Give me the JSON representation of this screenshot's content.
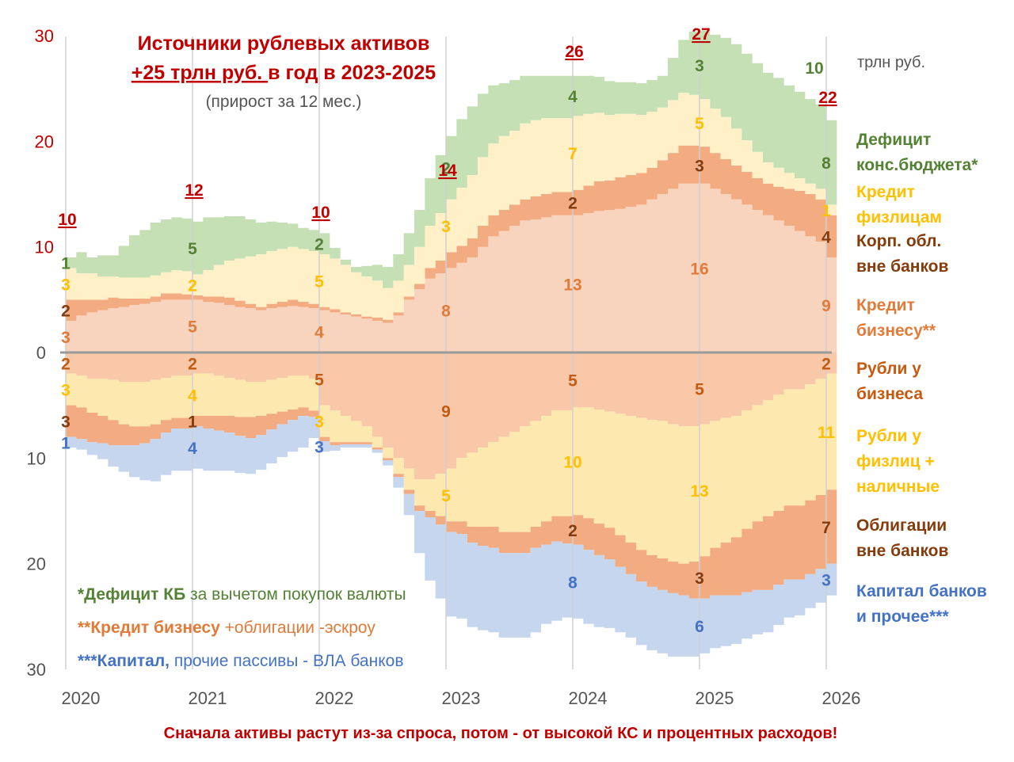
{
  "chart_data": {
    "type": "area",
    "title": "Источники рублевых активов",
    "subtitle_underlined": "+25 трлн руб. ",
    "subtitle_rest": "в год в 2023-2025",
    "subtitle2": "(прирост за 12 мес.)",
    "unit": "трлн руб.",
    "footer": "Сначала активы растут из-за спроса, потом - от высокой КС и процентных расходов!",
    "xlabel": "",
    "ylabel": "",
    "x_ticks": [
      "2020",
      "2021",
      "2022",
      "2023",
      "2024",
      "2025",
      "2026"
    ],
    "x_range": [
      2020,
      2026
    ],
    "ylim": [
      -30,
      30
    ],
    "y_ticks_top": [
      "30",
      "20",
      "10"
    ],
    "y_ticks_bottom": [
      "0",
      "10",
      "20",
      "30"
    ],
    "grid": "vertical at years",
    "legend": "right",
    "top_series": [
      {
        "name": "Кредит бизнесу**",
        "color": "#f8d3bd",
        "label_color": "#e07b39",
        "year_values": [
          3,
          5,
          4,
          8,
          13,
          16,
          9
        ],
        "values": [
          3,
          3.5,
          3.8,
          4,
          4.2,
          4.3,
          4.5,
          4.6,
          4.8,
          5,
          5,
          5,
          5,
          4.8,
          4.7,
          4.5,
          4.3,
          4.2,
          4.0,
          4.2,
          4.3,
          4.4,
          4.3,
          4.2,
          4,
          3.8,
          3.6,
          3.4,
          3.2,
          3.0,
          2.8,
          3.5,
          5,
          6,
          7,
          7.5,
          8,
          8.5,
          9,
          10,
          11,
          11.5,
          12,
          12.5,
          12.6,
          12.8,
          13,
          13,
          13,
          13.2,
          13.4,
          13.5,
          13.6,
          13.8,
          14,
          14.5,
          15,
          15.5,
          16,
          16,
          16,
          15.5,
          15,
          14.5,
          14,
          13.5,
          13,
          12.5,
          12,
          11.5,
          11,
          10.5,
          9
        ]
      },
      {
        "name": "Корп. обл. вне банков",
        "color": "#f3ab82",
        "label_color": "#843c0c",
        "year_values": [
          2,
          0,
          0,
          0,
          2,
          3,
          4
        ],
        "values": [
          2,
          1.5,
          1.2,
          1,
          1,
          0.8,
          0.6,
          0.5,
          0.5,
          0.6,
          0.6,
          0.5,
          0.4,
          0.5,
          0.6,
          0.7,
          0.6,
          0.4,
          0.3,
          0.4,
          0.5,
          0.6,
          0.5,
          0.4,
          0.3,
          0.3,
          0.2,
          0.2,
          0.2,
          0.3,
          0.3,
          0.3,
          0.3,
          0.5,
          1,
          1.2,
          1.5,
          1.6,
          1.8,
          2,
          2,
          2,
          2,
          2,
          2.2,
          2.2,
          2.2,
          2.2,
          2.4,
          2.6,
          2.8,
          2.8,
          3,
          3,
          3,
          3,
          3.2,
          3.4,
          3.6,
          3.6,
          3.5,
          3.4,
          3.3,
          3.2,
          3.1,
          3.0,
          3.0,
          3.2,
          3.5,
          3.8,
          4.0,
          4.0,
          4
        ]
      },
      {
        "name": "Кредит физлицам",
        "color": "#fff0c7",
        "label_color": "#ffc000",
        "year_values": [
          3,
          2,
          5,
          3,
          7,
          5,
          1
        ],
        "values": [
          3,
          2.5,
          2.5,
          2.2,
          2,
          2,
          2,
          2,
          2,
          2,
          2.2,
          2.2,
          2,
          2.5,
          3,
          3.5,
          4,
          4.5,
          5,
          5,
          5,
          5,
          5,
          5,
          5,
          4.8,
          4.5,
          4,
          3.8,
          3.5,
          3,
          3,
          3,
          3.5,
          4,
          4.5,
          5,
          5.5,
          6,
          6.5,
          6.8,
          7,
          7,
          7.2,
          7.2,
          7.2,
          7,
          7,
          7,
          6.8,
          6.5,
          6.2,
          6,
          5.8,
          5.5,
          5.3,
          5,
          5,
          5,
          4.8,
          4.5,
          4.2,
          4,
          3.5,
          3,
          2.5,
          2,
          1.8,
          1.5,
          1.2,
          1,
          1,
          1
        ]
      },
      {
        "name": "Дефицит конс.бюджета*",
        "color": "#c5e0b4",
        "label_color": "#548235",
        "year_values": [
          1,
          5,
          2,
          2,
          4,
          3,
          8
        ],
        "values": [
          1,
          2,
          1.5,
          2,
          2,
          3,
          4,
          4.5,
          5,
          5,
          5,
          5,
          5,
          5,
          4.5,
          4.2,
          4,
          3.5,
          3,
          2.8,
          2.5,
          2.2,
          2,
          2,
          2,
          1,
          0.5,
          0.5,
          1,
          1.5,
          2,
          2.5,
          3,
          3.5,
          4.5,
          5.5,
          6,
          6.5,
          6.5,
          6,
          5.5,
          5,
          4.8,
          4.5,
          4.2,
          4,
          4,
          4,
          3.8,
          3.6,
          3.4,
          3.2,
          3,
          3,
          3,
          3,
          3,
          4,
          5,
          6,
          6.5,
          7,
          7.5,
          8,
          8.2,
          8.4,
          8.5,
          8.5,
          8.3,
          8.2,
          8,
          8,
          8
        ]
      }
    ],
    "bottom_series": [
      {
        "name": "Рубли у бизнеса",
        "color": "#f8c8a8",
        "label_color": "#c55a11",
        "year_values": [
          2,
          2,
          5,
          9,
          5,
          5,
          2
        ],
        "values": [
          2,
          2.2,
          2.5,
          2.5,
          2.6,
          2.8,
          2.8,
          2.8,
          2.6,
          2.4,
          2.2,
          2.2,
          2,
          2,
          2.2,
          2.4,
          2.6,
          2.8,
          2.8,
          2.6,
          2.4,
          2.2,
          2.2,
          2.5,
          5,
          5.5,
          6,
          6.5,
          7,
          8,
          9,
          10,
          11,
          12,
          12,
          11.5,
          11,
          10,
          9.5,
          9,
          8.5,
          8,
          7.5,
          7,
          6.5,
          6,
          5.5,
          5.5,
          5.2,
          5.2,
          5.4,
          5.6,
          5.8,
          6,
          6.2,
          6.4,
          6.5,
          6.8,
          7,
          7,
          6.8,
          6.5,
          6.2,
          6,
          5.5,
          5,
          4.5,
          4,
          3.5,
          3.5,
          3,
          2.5,
          2
        ]
      },
      {
        "name": "Рубли у физлиц + наличные",
        "color": "#fde9b0",
        "label_color": "#ffc000",
        "year_values": [
          3,
          4,
          3,
          5,
          10,
          13,
          11
        ],
        "values": [
          3,
          3,
          3.2,
          3.5,
          3.8,
          4,
          4.2,
          4.2,
          4.2,
          4,
          4,
          4,
          4,
          4,
          3.8,
          3.6,
          3.5,
          3.3,
          3.2,
          3.2,
          3.2,
          3.2,
          3,
          3,
          3,
          3,
          2.5,
          2,
          1.5,
          1,
          1,
          1.5,
          2,
          2.5,
          3,
          4,
          5,
          6,
          7,
          7.5,
          8,
          9,
          9.5,
          10,
          10,
          10,
          10,
          10,
          10.2,
          10.5,
          10.8,
          11,
          11.5,
          12,
          12.5,
          12.8,
          13,
          13,
          13,
          12.8,
          12.5,
          12,
          11.8,
          11.5,
          11.2,
          11,
          11,
          11,
          11,
          11,
          11,
          11,
          11
        ]
      },
      {
        "name": "Облигации вне банков",
        "color": "#f3ab82",
        "label_color": "#843c0c",
        "year_values": [
          3,
          1,
          0,
          0,
          2,
          3,
          7
        ],
        "values": [
          3,
          3,
          2.8,
          2.6,
          2.4,
          2,
          1.8,
          1.6,
          1.4,
          1.2,
          1.0,
          1,
          1,
          1.2,
          1.4,
          1.6,
          1.8,
          2,
          1.8,
          1.5,
          1.2,
          1.0,
          0.8,
          0.6,
          0.4,
          0.3,
          0.2,
          0.2,
          0.2,
          0.2,
          0.2,
          0.3,
          0.4,
          0.5,
          0.6,
          0.8,
          1,
          1.2,
          1.5,
          1.8,
          2,
          2,
          2,
          2,
          2,
          2.2,
          2.4,
          2.6,
          2.8,
          3,
          3,
          3,
          3,
          3,
          3,
          3,
          3,
          3,
          3,
          3.5,
          4,
          4.5,
          5,
          5.5,
          6,
          6.5,
          7,
          7,
          7,
          7,
          7,
          7,
          7
        ]
      },
      {
        "name": "Капитал банков и прочее***",
        "color": "#c5d6ee",
        "label_color": "#4472c4",
        "year_values": [
          1,
          4,
          3,
          0,
          8,
          6,
          3
        ],
        "values": [
          1,
          1,
          1.2,
          1.5,
          2,
          2.5,
          3,
          3.5,
          4,
          4,
          4,
          4,
          4,
          4,
          3.8,
          3.6,
          3.5,
          3.4,
          3.3,
          3.2,
          3.1,
          3,
          3,
          2,
          1,
          0.5,
          0.3,
          0.3,
          0.3,
          0.3,
          0.5,
          1,
          2,
          4,
          6,
          7,
          8,
          8,
          8,
          8,
          8,
          8,
          8,
          8,
          8,
          7.5,
          7.5,
          7,
          7,
          7,
          6.8,
          6.5,
          6.2,
          6,
          6,
          6,
          6,
          6,
          5.8,
          5.5,
          5.2,
          5,
          4.8,
          4.6,
          4.4,
          4.2,
          4,
          3.8,
          3.6,
          3.4,
          3.2,
          3.2,
          3
        ]
      }
    ],
    "totals": [
      {
        "year": "2020",
        "value": "10"
      },
      {
        "year": "2021",
        "value": "12"
      },
      {
        "year": "2022",
        "value": "10"
      },
      {
        "year": "2023",
        "value": "14"
      },
      {
        "year": "2024",
        "value": "26"
      },
      {
        "year": "2025",
        "value": "27"
      },
      {
        "year": "2026",
        "value": "22"
      }
    ],
    "extra_label": {
      "text": "10",
      "color": "#548235",
      "note": "дефицит 2025 г."
    },
    "legend_items": [
      {
        "text": [
          "Дефицит",
          "конс.бюджета*"
        ],
        "color": "#548235"
      },
      {
        "text": [
          "Кредит",
          "физлицам"
        ],
        "color": "#ffc000"
      },
      {
        "text": [
          "Корп. обл.",
          "вне банков"
        ],
        "color": "#843c0c"
      },
      {
        "text": [
          "Кредит",
          "бизнесу**"
        ],
        "color": "#e07b39"
      },
      {
        "text": [
          "Рубли у",
          "бизнеса"
        ],
        "color": "#c55a11"
      },
      {
        "text": [
          "Рубли у",
          "физлиц +",
          "наличные"
        ],
        "color": "#ffc000"
      },
      {
        "text": [
          "Облигации",
          "вне банков"
        ],
        "color": "#843c0c"
      },
      {
        "text": [
          "Капитал банков",
          "и прочее***"
        ],
        "color": "#4472c4"
      }
    ],
    "notes": [
      {
        "bold": "*Дефицит КБ",
        "rest": " за вычетом покупок валюты",
        "color": "#548235"
      },
      {
        "bold": "**Кредит бизнесу",
        "rest": " +облигации -эскроу",
        "color": "#e07b39"
      },
      {
        "bold": "***Капитал,",
        "rest": " прочие пассивы - ВЛА банков",
        "color": "#4472c4"
      }
    ]
  }
}
